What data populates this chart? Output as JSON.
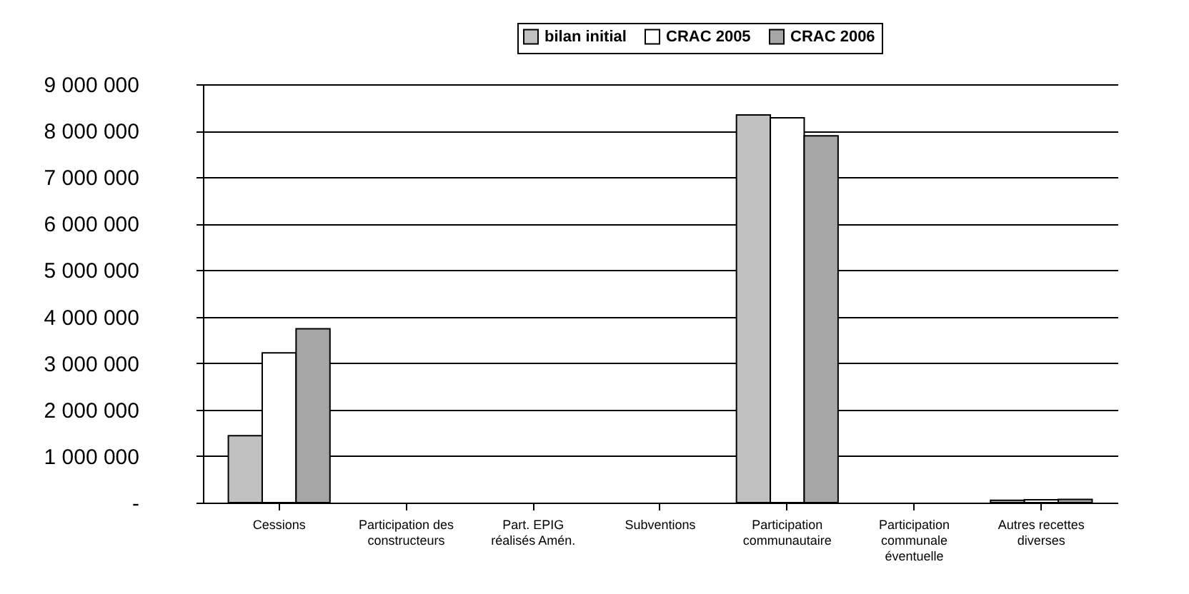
{
  "chart_data": {
    "type": "bar",
    "categories": [
      "Cessions",
      "Participation des constructeurs",
      "Part. EPIG réalisés Amén.",
      "Subventions",
      "Participation communautaire",
      "Participation communale éventuelle",
      "Autres recettes diverses"
    ],
    "series": [
      {
        "name": "bilan initial",
        "color": "#c0c0c0",
        "values": [
          1440000,
          null,
          null,
          null,
          8340000,
          null,
          50000
        ]
      },
      {
        "name": "CRAC 2005",
        "color": "#ffffff",
        "values": [
          3220000,
          null,
          null,
          null,
          8280000,
          null,
          60000
        ]
      },
      {
        "name": "CRAC 2006",
        "color": "#a6a6a6",
        "values": [
          3740000,
          null,
          null,
          null,
          7890000,
          null,
          70000
        ]
      }
    ],
    "ylim": [
      0,
      9000000
    ],
    "yticks": [
      {
        "value": 0,
        "label": "-"
      },
      {
        "value": 1000000,
        "label": "1 000 000"
      },
      {
        "value": 2000000,
        "label": "2 000 000"
      },
      {
        "value": 3000000,
        "label": "3 000 000"
      },
      {
        "value": 4000000,
        "label": "4 000 000"
      },
      {
        "value": 5000000,
        "label": "5 000 000"
      },
      {
        "value": 6000000,
        "label": "6 000 000"
      },
      {
        "value": 7000000,
        "label": "7 000 000"
      },
      {
        "value": 8000000,
        "label": "8 000 000"
      },
      {
        "value": 9000000,
        "label": "9 000 000"
      }
    ],
    "grid": "y",
    "legend": "top right"
  }
}
